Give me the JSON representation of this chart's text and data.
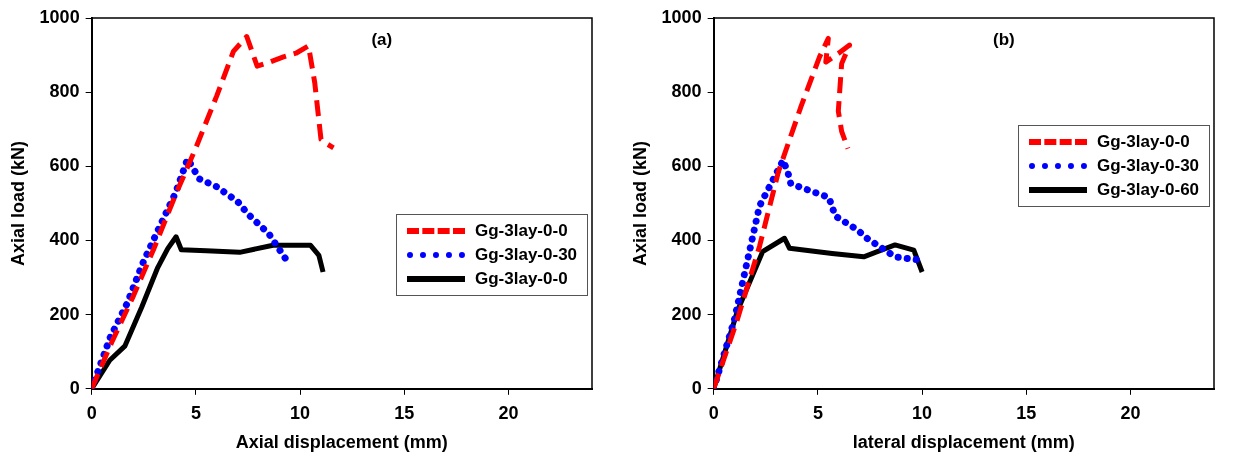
{
  "chart_data": [
    {
      "type": "line",
      "xlabel": "Axial displacement (mm)",
      "ylabel": "Axial load (kN)",
      "annotations": [
        "(a)"
      ],
      "xlim": [
        0,
        24
      ],
      "xticks": [
        0,
        5,
        10,
        15,
        20
      ],
      "ylim": [
        0,
        1000
      ],
      "yticks": [
        0,
        200,
        400,
        600,
        800,
        1000
      ],
      "grid": false,
      "legend": "right",
      "marker": "none",
      "series": [
        {
          "name": "Gg-3lay-0-0",
          "color": "#ff0000",
          "line_style": "dashed",
          "x": [
            0,
            1,
            2,
            3,
            4,
            5,
            6,
            6.8,
            7.44,
            7.94,
            8.5,
            9.2,
            9.8,
            10.4,
            10.7,
            11.0,
            11.3,
            11.6
          ],
          "values": [
            0,
            130,
            250,
            380,
            520,
            650,
            790,
            910,
            950,
            870,
            880,
            895,
            905,
            925,
            826,
            673,
            660,
            650
          ]
        },
        {
          "name": "Gg-3lay-0-30",
          "color": "#0000ff",
          "line_style": "dotted",
          "x": [
            0,
            0.9,
            1.7,
            2.44,
            3.2,
            4.03,
            4.6,
            5.17,
            6.0,
            6.4,
            7.0,
            7.5,
            8.5,
            9.3
          ],
          "values": [
            0,
            140,
            230,
            337,
            430,
            529,
            620,
            566,
            545,
            529,
            505,
            471,
            418,
            351
          ]
        },
        {
          "name": "Gg-3lay-0-0",
          "color": "#000000",
          "line_style": "solid",
          "x": [
            0,
            0.87,
            1.59,
            2.4,
            3.17,
            3.65,
            4.05,
            4.3,
            5.5,
            7.1,
            8.7,
            10.5,
            10.9,
            11.1
          ],
          "values": [
            0,
            77,
            115,
            220,
            327,
            378,
            410,
            375,
            372,
            368,
            387,
            387,
            360,
            315
          ]
        }
      ]
    },
    {
      "type": "line",
      "xlabel": "lateral displacement (mm)",
      "ylabel": "Axial load (kN)",
      "annotations": [
        "(b)"
      ],
      "xlim": [
        0,
        24
      ],
      "xticks": [
        0,
        5,
        10,
        15,
        20
      ],
      "ylim": [
        0,
        1000
      ],
      "yticks": [
        0,
        200,
        400,
        600,
        800,
        1000
      ],
      "grid": false,
      "legend": "right",
      "marker": "none",
      "series": [
        {
          "name": "Gg-3lay-0-0",
          "color": "#ff0000",
          "line_style": "dashed",
          "x": [
            0,
            1.1,
            2.2,
            3.1,
            4.17,
            5.08,
            5.5,
            5.38,
            5.98,
            6.52,
            6.14,
            5.98,
            6.14,
            6.44
          ],
          "values": [
            0,
            180,
            384,
            584,
            758,
            895,
            945,
            881,
            904,
            927,
            877,
            749,
            694,
            648
          ]
        },
        {
          "name": "Gg-3lay-0-30",
          "color": "#0000ff",
          "line_style": "dotted",
          "x": [
            0,
            0.98,
            2.2,
            3.33,
            3.56,
            3.7,
            5.08,
            5.53,
            5.83,
            6.89,
            7.35,
            8.7,
            9.9
          ],
          "values": [
            0,
            183,
            493,
            616,
            584,
            553,
            525,
            516,
            466,
            429,
            406,
            356,
            347
          ]
        },
        {
          "name": "Gg-3lay-0-60",
          "color": "#000000",
          "line_style": "solid",
          "x": [
            0,
            1.14,
            2.35,
            3.4,
            3.64,
            5.68,
            7.2,
            8.7,
            9.6,
            10.0
          ],
          "values": [
            0,
            210,
            370,
            406,
            379,
            365,
            356,
            388,
            374,
            315
          ]
        }
      ]
    }
  ]
}
